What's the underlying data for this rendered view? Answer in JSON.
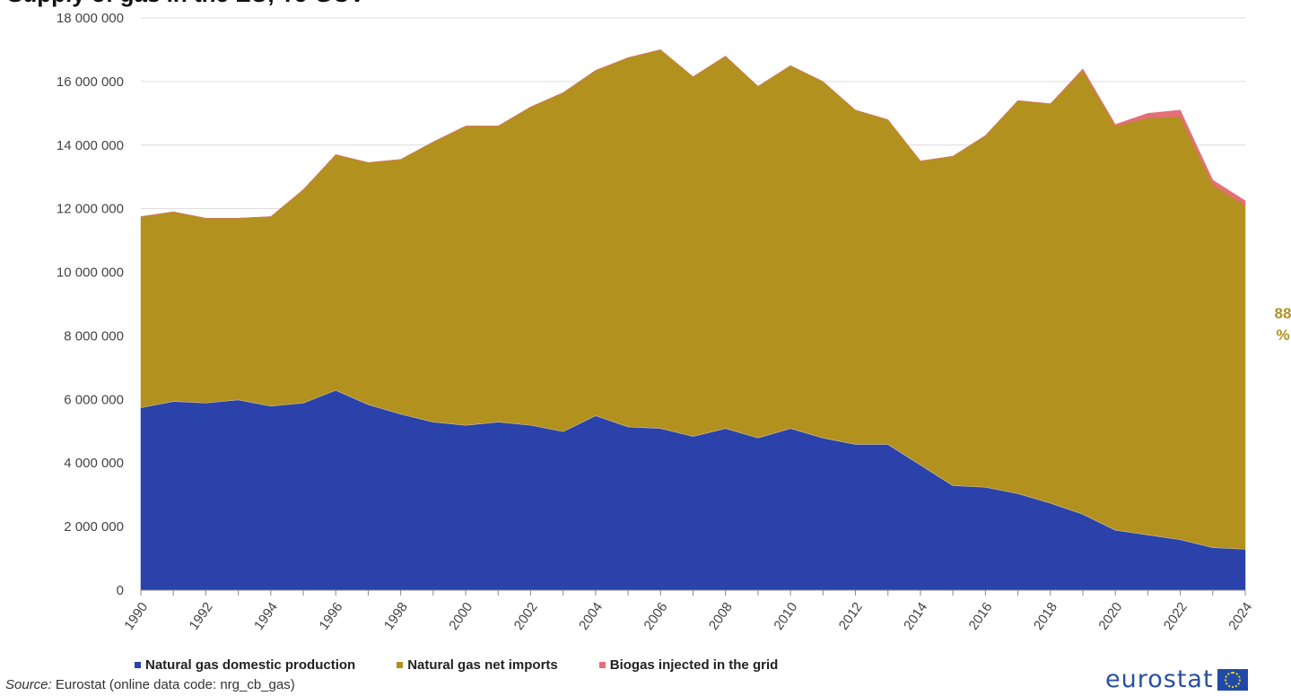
{
  "title": "Supply of gas in the EU, TJ GCV",
  "chart_data": {
    "type": "area",
    "stacked": true,
    "x": [
      1990,
      1991,
      1992,
      1993,
      1994,
      1995,
      1996,
      1997,
      1998,
      1999,
      2000,
      2001,
      2002,
      2003,
      2004,
      2005,
      2006,
      2007,
      2008,
      2009,
      2010,
      2011,
      2012,
      2013,
      2014,
      2015,
      2016,
      2017,
      2018,
      2019,
      2020,
      2021,
      2022,
      2023,
      2024
    ],
    "x_ticks": [
      "1990",
      "1992",
      "1994",
      "1996",
      "1998",
      "2000",
      "2002",
      "2004",
      "2006",
      "2008",
      "2010",
      "2012",
      "2014",
      "2016",
      "2018",
      "2020",
      "2022",
      "2024"
    ],
    "ylim": [
      0,
      18000000
    ],
    "y_ticks": [
      "0",
      "2 000 000",
      "4 000 000",
      "6 000 000",
      "8 000 000",
      "10 000 000",
      "12 000 000",
      "14 000 000",
      "16 000 000",
      "18 000 000"
    ],
    "y_tick_values": [
      0,
      2000000,
      4000000,
      6000000,
      8000000,
      10000000,
      12000000,
      14000000,
      16000000,
      18000000
    ],
    "grid": true,
    "legend_position": "bottom",
    "series": [
      {
        "name": "Natural gas domestic production",
        "color": "#2a42a9",
        "values": [
          5750000,
          5950000,
          5900000,
          6000000,
          5800000,
          5900000,
          6300000,
          5850000,
          5550000,
          5300000,
          5200000,
          5300000,
          5200000,
          5000000,
          5500000,
          5150000,
          5100000,
          4850000,
          5100000,
          4800000,
          5100000,
          4800000,
          4600000,
          4600000,
          3950000,
          3300000,
          3250000,
          3050000,
          2750000,
          2400000,
          1900000,
          1750000,
          1600000,
          1350000,
          1300000
        ]
      },
      {
        "name": "Natural gas net imports",
        "color": "#b2911f",
        "values": [
          6000000,
          5950000,
          5800000,
          5700000,
          5950000,
          6700000,
          7400000,
          7600000,
          8000000,
          8800000,
          9400000,
          9300000,
          10000000,
          10650000,
          10850000,
          11600000,
          11900000,
          11300000,
          11700000,
          11050000,
          11400000,
          11200000,
          10500000,
          10200000,
          9550000,
          10350000,
          11050000,
          12350000,
          12550000,
          13950000,
          12700000,
          13100000,
          13300000,
          11400000,
          10800000
        ]
      },
      {
        "name": "Biogas injected in the grid",
        "color": "#e36f77",
        "values": [
          0,
          0,
          0,
          0,
          0,
          0,
          0,
          0,
          0,
          0,
          0,
          0,
          0,
          0,
          0,
          0,
          0,
          0,
          0,
          0,
          0,
          0,
          0,
          0,
          0,
          0,
          0,
          0,
          0,
          50000,
          50000,
          150000,
          200000,
          150000,
          150000
        ]
      }
    ],
    "annotations": [
      {
        "text": "88",
        "x": 2024,
        "color": "#b2911f"
      },
      {
        "text": "%",
        "x": 2024,
        "color": "#b2911f"
      }
    ]
  },
  "source": {
    "prefix": "Source:",
    "text": " Eurostat (online data code: nrg_cb_gas)"
  },
  "logo": {
    "text": "eurostat",
    "flag_icon": "eu-flag-icon"
  }
}
